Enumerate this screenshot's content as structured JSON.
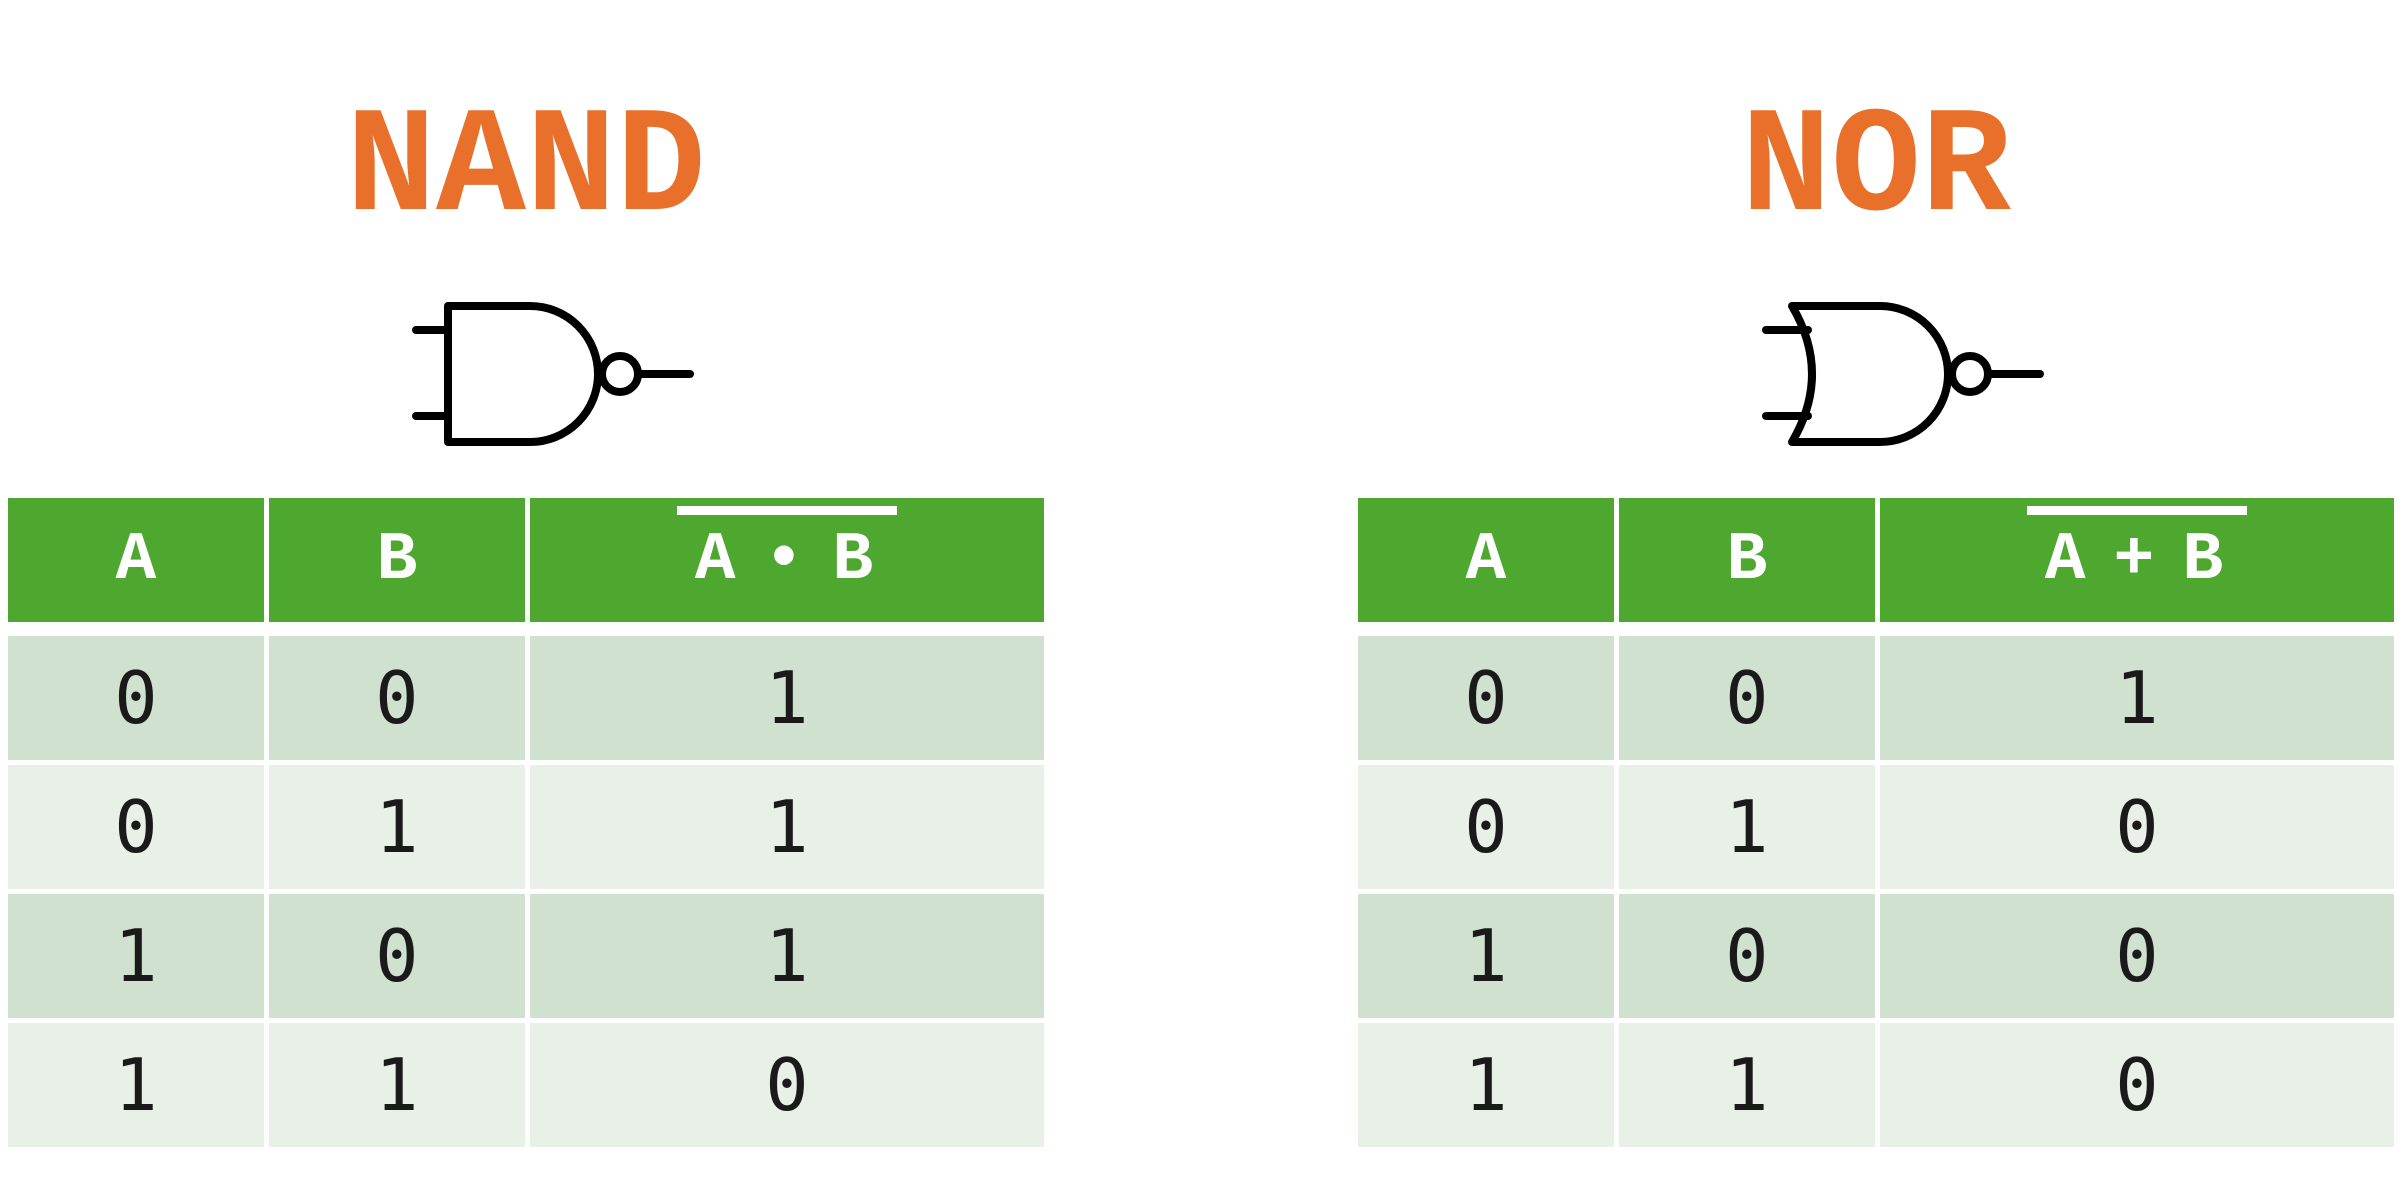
{
  "colors": {
    "title": "#e8702a",
    "header_bg": "#4ea72e",
    "row_dark": "#d0e2cf",
    "row_light": "#e8f0e7",
    "gate_stroke": "#000000"
  },
  "nand": {
    "title": "NAND",
    "symbol_icon": "nand-gate-icon",
    "headers": {
      "a": "A",
      "b": "B",
      "out_a": "A",
      "out_op": "•",
      "out_b": "B"
    },
    "rows": [
      {
        "a": "0",
        "b": "0",
        "out": "1"
      },
      {
        "a": "0",
        "b": "1",
        "out": "1"
      },
      {
        "a": "1",
        "b": "0",
        "out": "1"
      },
      {
        "a": "1",
        "b": "1",
        "out": "0"
      }
    ]
  },
  "nor": {
    "title": "NOR",
    "symbol_icon": "nor-gate-icon",
    "headers": {
      "a": "A",
      "b": "B",
      "out_a": "A",
      "out_op": "+",
      "out_b": "B"
    },
    "rows": [
      {
        "a": "0",
        "b": "0",
        "out": "1"
      },
      {
        "a": "0",
        "b": "1",
        "out": "0"
      },
      {
        "a": "1",
        "b": "0",
        "out": "0"
      },
      {
        "a": "1",
        "b": "1",
        "out": "0"
      }
    ]
  }
}
